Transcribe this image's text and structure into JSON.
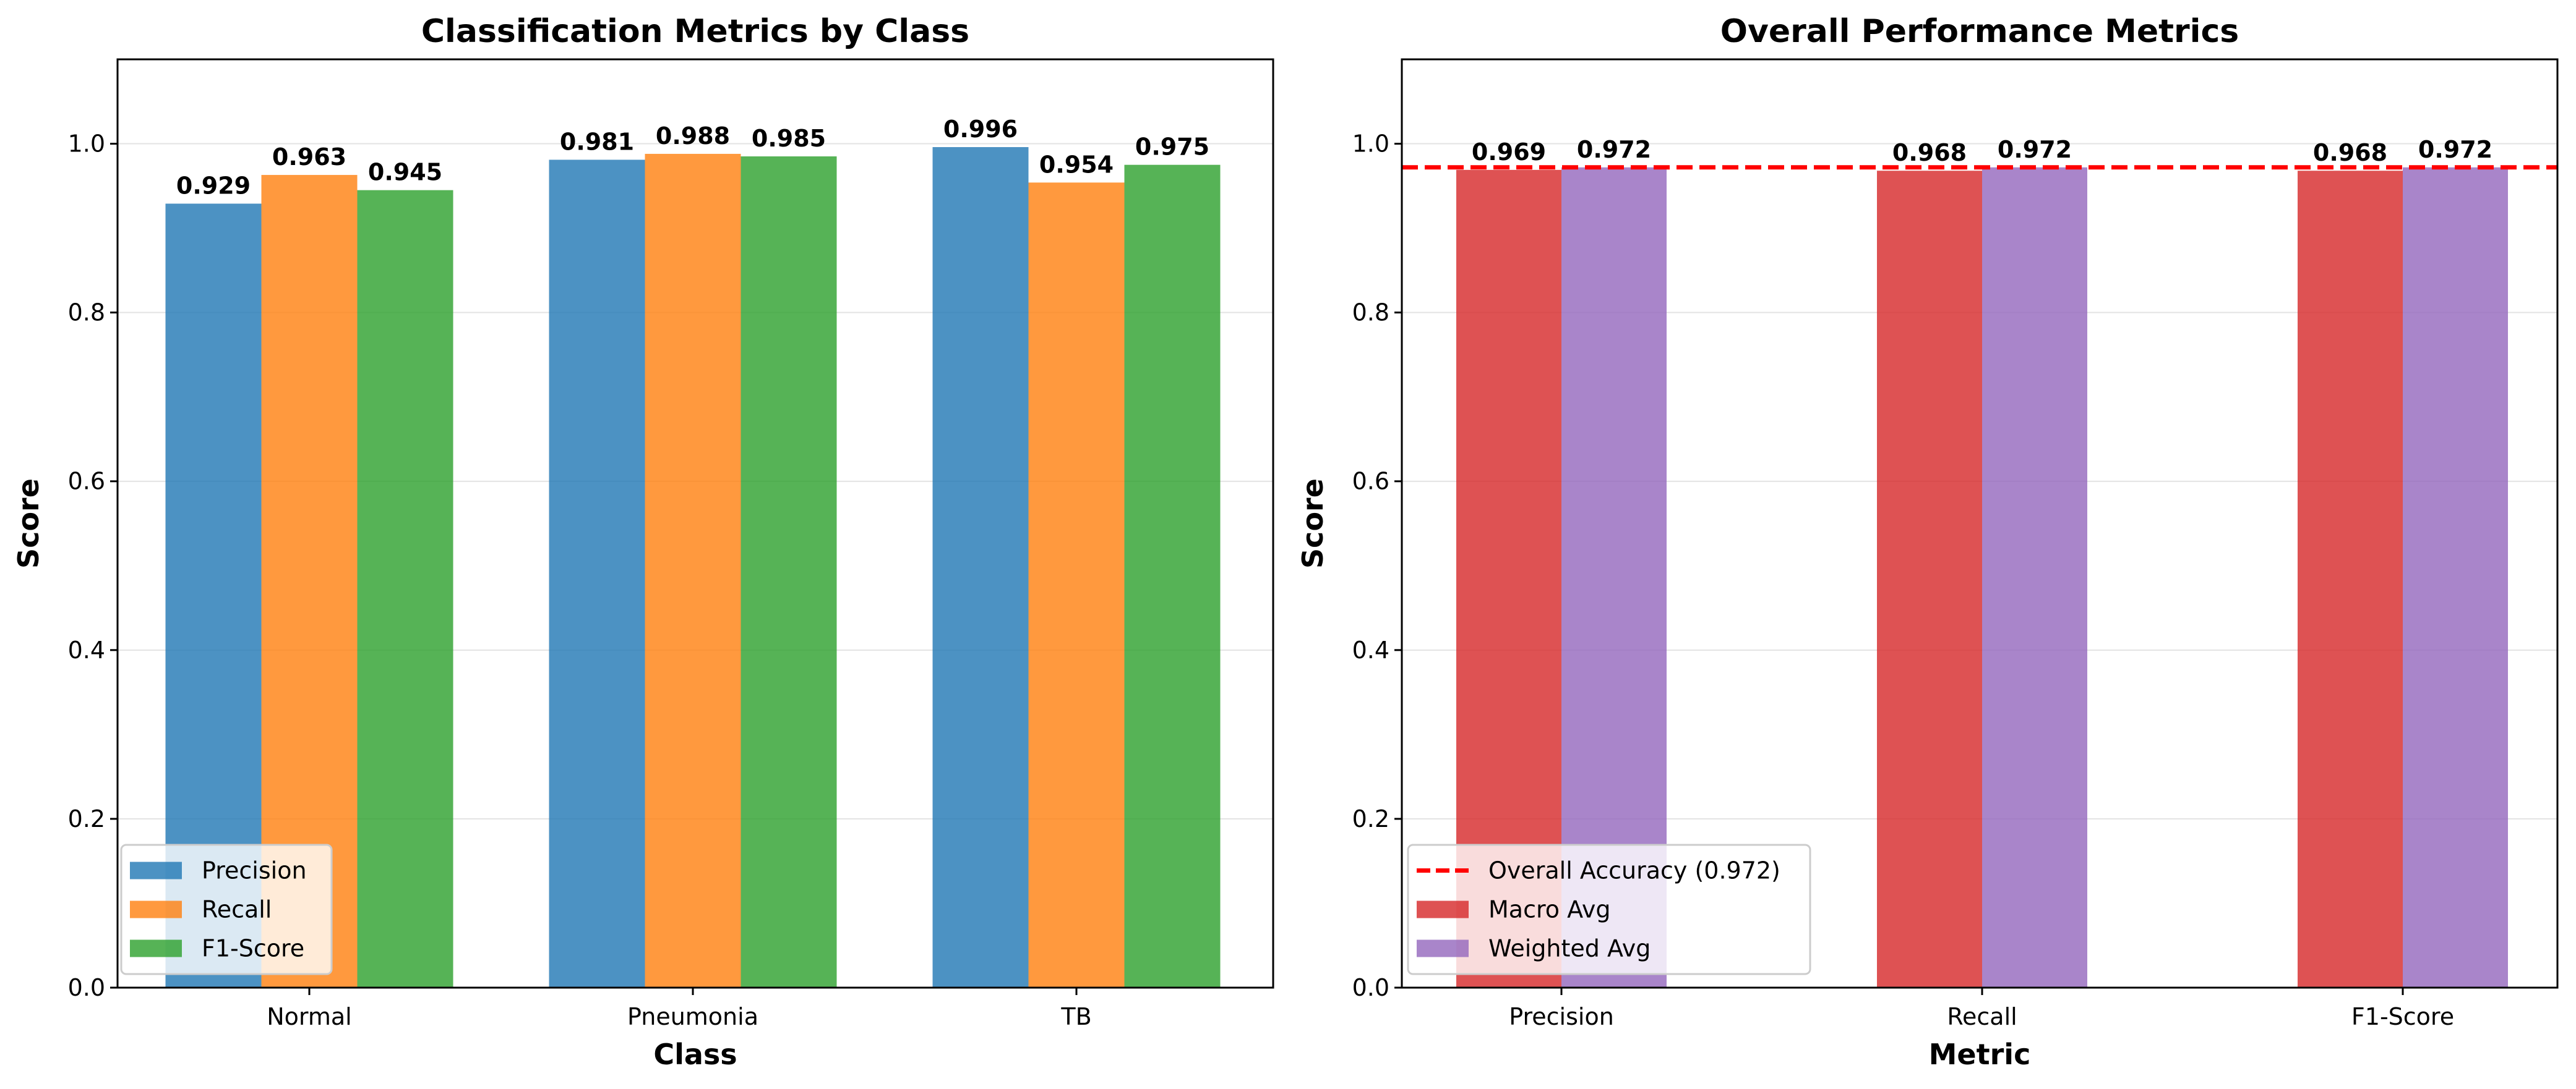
{
  "chart_data": [
    {
      "type": "bar",
      "title": "Classification Metrics by Class",
      "xlabel": "Class",
      "ylabel": "Score",
      "ylim": [
        0,
        1.1
      ],
      "yticks": [
        "0.0",
        "0.2",
        "0.4",
        "0.6",
        "0.8",
        "1.0"
      ],
      "categories": [
        "Normal",
        "Pneumonia",
        "TB"
      ],
      "series": [
        {
          "name": "Precision",
          "color": "#1f77b4",
          "values": [
            0.929,
            0.981,
            0.996
          ],
          "labels": [
            "0.929",
            "0.981",
            "0.996"
          ]
        },
        {
          "name": "Recall",
          "color": "#ff7f0e",
          "values": [
            0.963,
            0.988,
            0.954
          ],
          "labels": [
            "0.963",
            "0.988",
            "0.954"
          ]
        },
        {
          "name": "F1-Score",
          "color": "#2ca02c",
          "values": [
            0.945,
            0.985,
            0.975
          ],
          "labels": [
            "0.945",
            "0.985",
            "0.975"
          ]
        }
      ],
      "grid": "y",
      "legend": "lower-left"
    },
    {
      "type": "bar",
      "title": "Overall Performance Metrics",
      "xlabel": "Metric",
      "ylabel": "Score",
      "ylim": [
        0,
        1.1
      ],
      "yticks": [
        "0.0",
        "0.2",
        "0.4",
        "0.6",
        "0.8",
        "1.0"
      ],
      "categories": [
        "Precision",
        "Recall",
        "F1-Score"
      ],
      "series": [
        {
          "name": "Macro Avg",
          "color": "#d62728",
          "values": [
            0.969,
            0.968,
            0.968
          ],
          "labels": [
            "0.969",
            "0.968",
            "0.968"
          ]
        },
        {
          "name": "Weighted Avg",
          "color": "#9467bd",
          "values": [
            0.972,
            0.972,
            0.972
          ],
          "labels": [
            "0.972",
            "0.972",
            "0.972"
          ]
        }
      ],
      "reference_line": {
        "name": "Overall Accuracy (0.972)",
        "value": 0.972,
        "color": "#ff0000",
        "style": "dashed"
      },
      "grid": "y",
      "legend": "lower-left"
    }
  ]
}
